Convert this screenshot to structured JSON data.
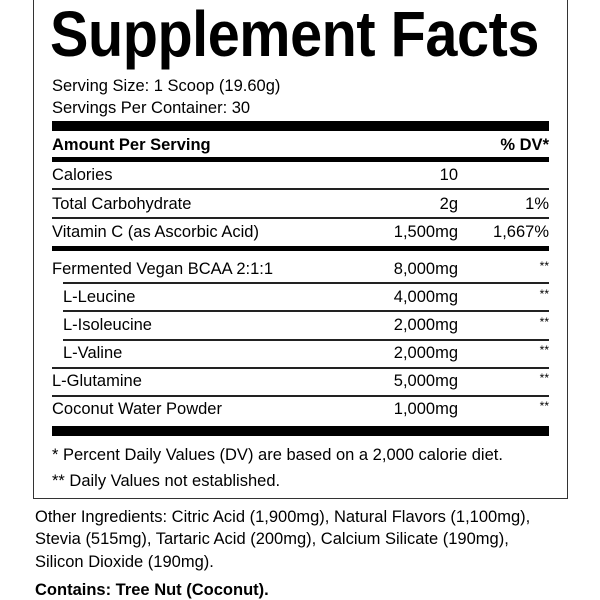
{
  "title": "Supplement Facts",
  "serving_size": "Serving Size: 1 Scoop (19.60g)",
  "servings_per_container": "Servings Per Container: 30",
  "header": {
    "amount": "Amount Per Serving",
    "dv": "% DV*"
  },
  "rows_top": [
    {
      "name": "Calories",
      "amount": "10",
      "dv": ""
    },
    {
      "name": "Total Carbohydrate",
      "amount": "2g",
      "dv": "1%"
    },
    {
      "name": "Vitamin C (as Ascorbic Acid)",
      "amount": "1,500mg",
      "dv": "1,667%"
    }
  ],
  "rows_bottom": [
    {
      "name": "Fermented Vegan BCAA 2:1:1",
      "amount": "8,000mg",
      "dv": "**"
    },
    {
      "name": "L-Leucine",
      "amount": "4,000mg",
      "dv": "**"
    },
    {
      "name": "L-Isoleucine",
      "amount": "2,000mg",
      "dv": "**"
    },
    {
      "name": "L-Valine",
      "amount": "2,000mg",
      "dv": "**"
    },
    {
      "name": "L-Glutamine",
      "amount": "5,000mg",
      "dv": "**"
    },
    {
      "name": "Coconut Water Powder",
      "amount": "1,000mg",
      "dv": "**"
    }
  ],
  "footnotes": [
    "* Percent Daily Values (DV) are based on a 2,000 calorie diet.",
    "** Daily Values not established."
  ],
  "other_ingredients": [
    "Other Ingredients:  Citric Acid (1,900mg), Natural Flavors (1,100mg),",
    "Stevia (515mg), Tartaric Acid (200mg), Calcium Silicate (190mg),",
    "Silicon Dioxide (190mg)."
  ],
  "contains": "Contains: Tree Nut (Coconut)."
}
